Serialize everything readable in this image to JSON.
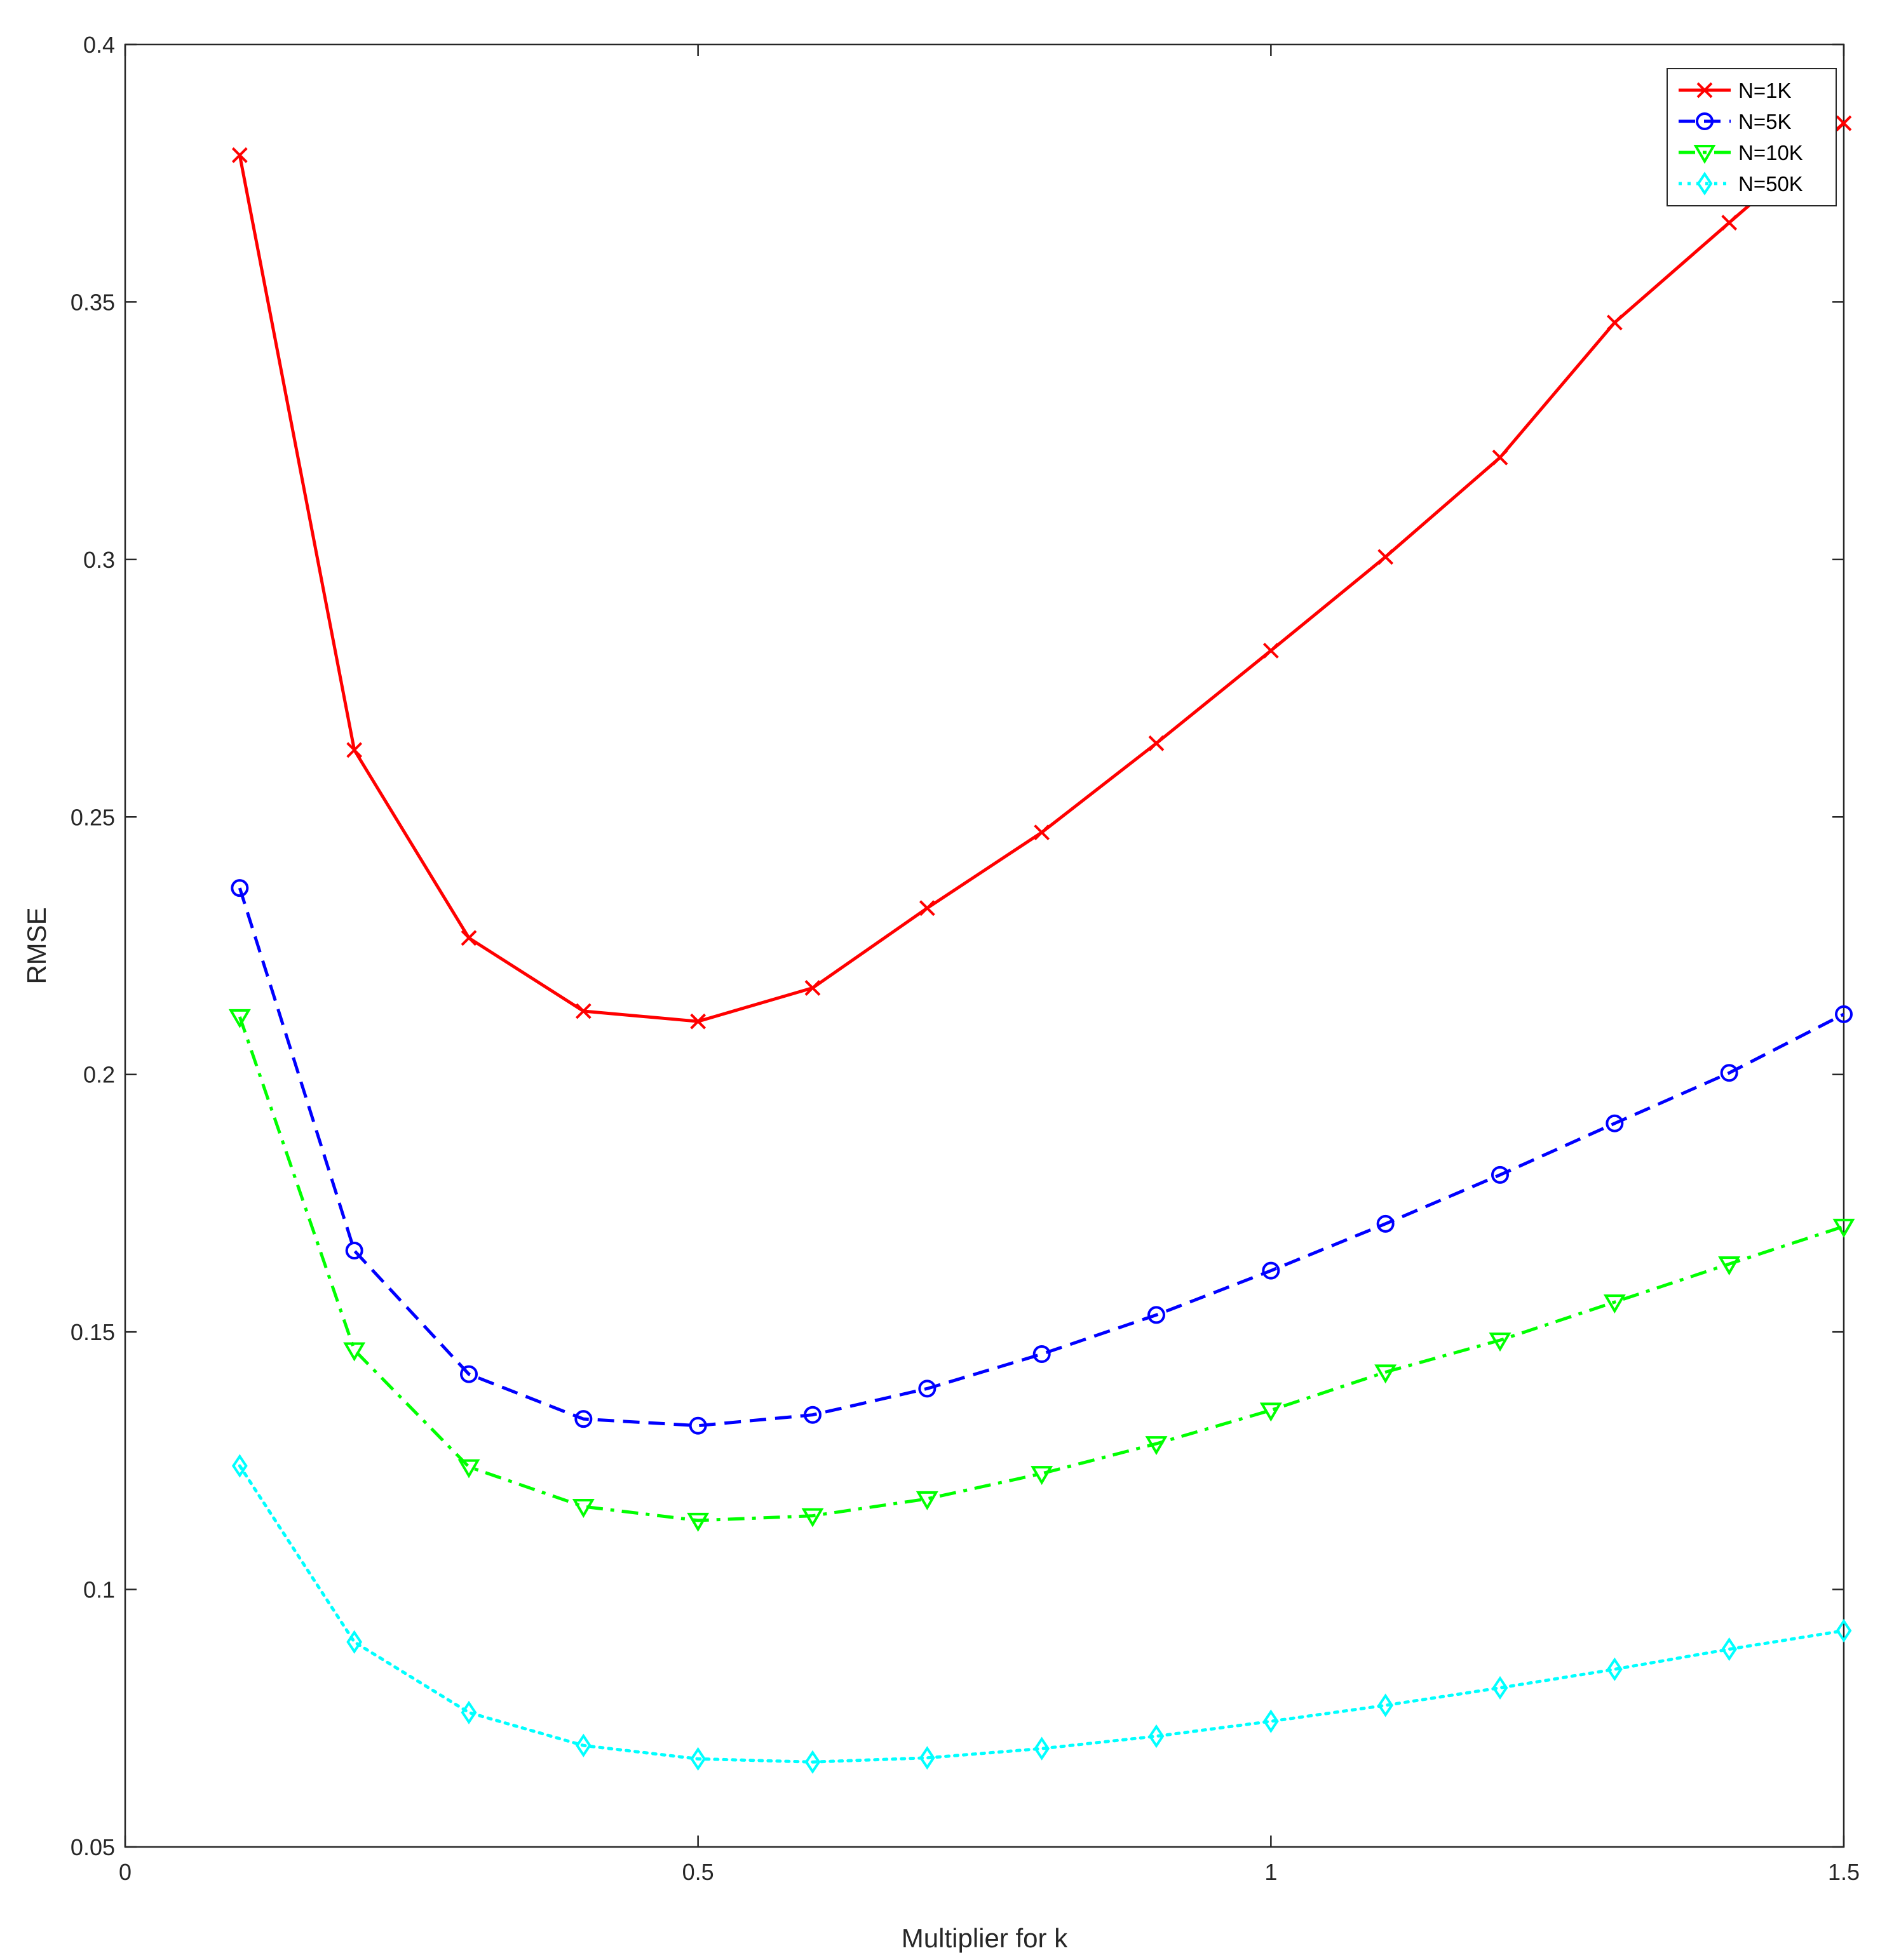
{
  "chart_data": {
    "type": "line",
    "title": "",
    "xlabel": "Multiplier for k",
    "ylabel": "RMSE",
    "xlim": [
      0,
      1.5
    ],
    "ylim": [
      0.05,
      0.4
    ],
    "xticks": [
      0,
      0.5,
      1,
      1.5
    ],
    "xtick_labels": [
      "0",
      "0.5",
      "1",
      "1.5"
    ],
    "yticks": [
      0.05,
      0.1,
      0.15,
      0.2,
      0.25,
      0.3,
      0.35,
      0.4
    ],
    "ytick_labels": [
      "0.05",
      "0.1",
      "0.15",
      "0.2",
      "0.25",
      "0.3",
      "0.35",
      "0.4"
    ],
    "grid": false,
    "legend_position": "top-right",
    "x": [
      0.1,
      0.2,
      0.3,
      0.4,
      0.5,
      0.6,
      0.7,
      0.8,
      0.9,
      1.0,
      1.1,
      1.2,
      1.3,
      1.4,
      1.5
    ],
    "series": [
      {
        "name": "N=1K",
        "color": "#ff0000",
        "line_style": "solid",
        "marker": "x",
        "values": [
          0.3785,
          0.263,
          0.2265,
          0.2123,
          0.2103,
          0.2168,
          0.2323,
          0.247,
          0.2643,
          0.2823,
          0.3005,
          0.3198,
          0.346,
          0.3654,
          0.3847
        ]
      },
      {
        "name": "N=5K",
        "color": "#0000ff",
        "line_style": "dashed",
        "marker": "circle",
        "values": [
          0.2362,
          0.1658,
          0.1418,
          0.1331,
          0.1318,
          0.1339,
          0.139,
          0.1457,
          0.1533,
          0.1619,
          0.171,
          0.1805,
          0.1905,
          0.2003,
          0.2117
        ]
      },
      {
        "name": "N=10K",
        "color": "#00ff00",
        "line_style": "dashdot",
        "marker": "triangle-down",
        "values": [
          0.2112,
          0.1465,
          0.1238,
          0.1161,
          0.1134,
          0.1143,
          0.1176,
          0.1225,
          0.1283,
          0.1348,
          0.1422,
          0.1484,
          0.1558,
          0.1632,
          0.1705
        ]
      },
      {
        "name": "N=50K",
        "color": "#00ffff",
        "line_style": "dotted",
        "marker": "diamond",
        "values": [
          0.124,
          0.0898,
          0.0761,
          0.0697,
          0.0671,
          0.0665,
          0.0673,
          0.0691,
          0.0715,
          0.0744,
          0.0775,
          0.0809,
          0.0845,
          0.0884,
          0.092
        ]
      }
    ]
  }
}
